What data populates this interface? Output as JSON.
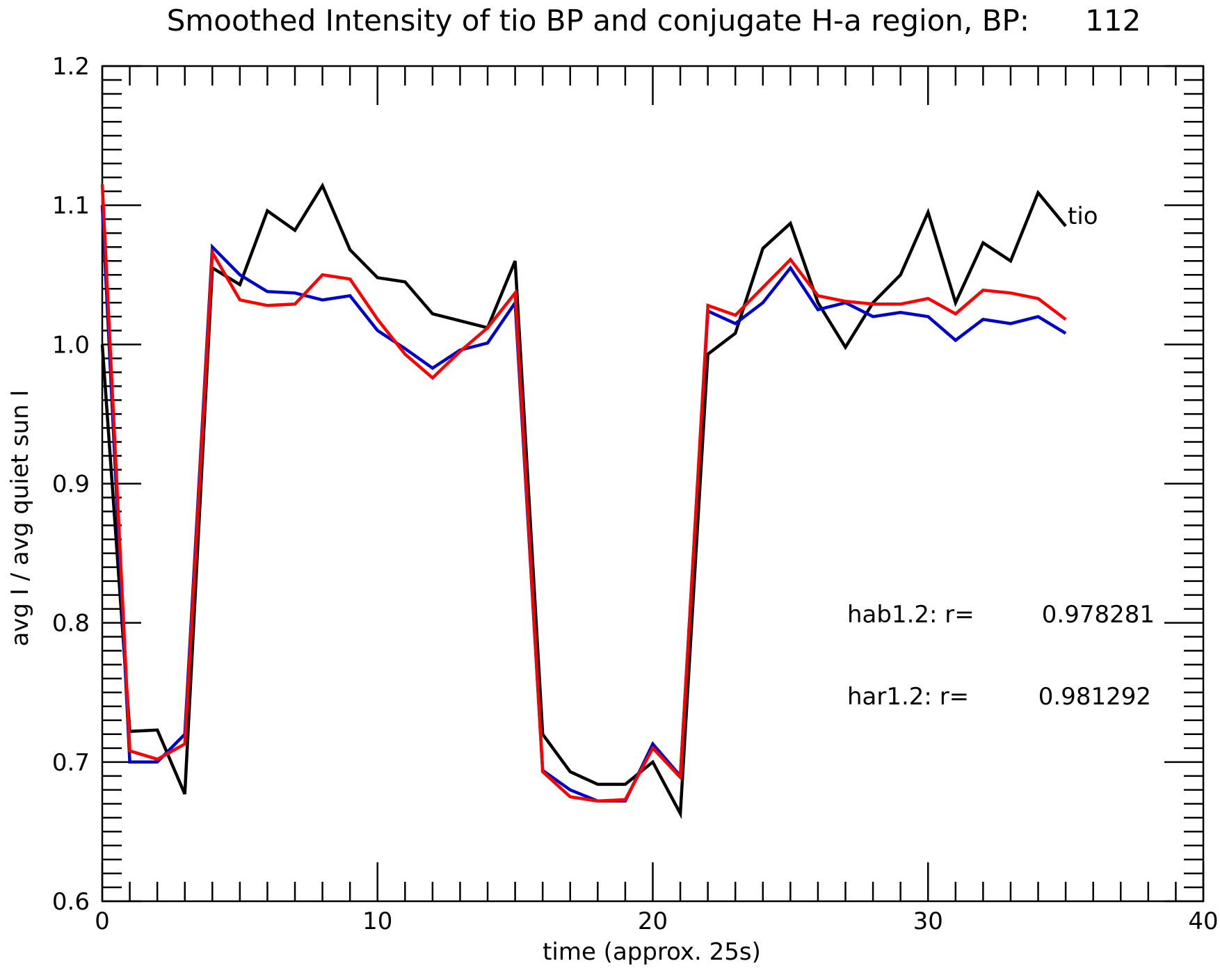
{
  "chart_data": {
    "type": "line",
    "title": "Smoothed Intensity of tio BP and conjugate H-a region, BP:      112",
    "xlabel": "time (approx. 25s)",
    "ylabel": "avg I / avg quiet sun I",
    "xlim": [
      0,
      40
    ],
    "ylim": [
      0.6,
      1.2
    ],
    "x_ticks": [
      0,
      10,
      20,
      30,
      40
    ],
    "x_tick_labels": [
      "0",
      "10",
      "20",
      "30",
      "40"
    ],
    "y_ticks": [
      0.6,
      0.7,
      0.8,
      0.9,
      1.0,
      1.1,
      1.2
    ],
    "y_tick_labels": [
      "0.6",
      "0.7",
      "0.8",
      "0.9",
      "1.0",
      "1.1",
      "1.2"
    ],
    "grid": false,
    "x": [
      0,
      1,
      2,
      3,
      4,
      5,
      6,
      7,
      8,
      9,
      10,
      11,
      12,
      13,
      14,
      15,
      16,
      17,
      18,
      19,
      20,
      21,
      22,
      23,
      24,
      25,
      26,
      27,
      28,
      29,
      30,
      31,
      32,
      33,
      34,
      35
    ],
    "series": [
      {
        "name": "tio",
        "color": "#000000",
        "values": [
          1.0,
          0.722,
          0.723,
          0.677,
          1.055,
          1.043,
          1.096,
          1.082,
          1.114,
          1.068,
          1.048,
          1.045,
          1.022,
          1.017,
          1.012,
          1.06,
          0.72,
          0.693,
          0.684,
          0.684,
          0.7,
          0.663,
          0.993,
          1.008,
          1.069,
          1.087,
          1.03,
          0.998,
          1.03,
          1.05,
          1.095,
          1.03,
          1.073,
          1.06,
          1.109,
          1.085
        ]
      },
      {
        "color": "#0000cc",
        "values": [
          1.1,
          0.7,
          0.7,
          0.72,
          1.07,
          1.05,
          1.038,
          1.037,
          1.032,
          1.035,
          1.01,
          0.997,
          0.983,
          0.996,
          1.001,
          1.03,
          0.694,
          0.68,
          0.672,
          0.672,
          0.713,
          0.69,
          1.024,
          1.015,
          1.03,
          1.055,
          1.025,
          1.03,
          1.02,
          1.023,
          1.02,
          1.003,
          1.018,
          1.015,
          1.02,
          1.008
        ]
      },
      {
        "color": "#ff0000",
        "values": [
          1.115,
          0.708,
          0.702,
          0.713,
          1.066,
          1.032,
          1.028,
          1.029,
          1.05,
          1.047,
          1.018,
          0.993,
          0.976,
          0.995,
          1.012,
          1.037,
          0.693,
          0.675,
          0.672,
          0.673,
          0.71,
          0.689,
          1.028,
          1.021,
          1.041,
          1.061,
          1.035,
          1.031,
          1.029,
          1.029,
          1.033,
          1.022,
          1.039,
          1.037,
          1.033,
          1.018
        ]
      }
    ],
    "series_label": "tio",
    "annotations": [
      {
        "label": "hab1.2: r=",
        "value": "0.978281"
      },
      {
        "label": "har1.2: r=",
        "value": "0.981292"
      }
    ]
  }
}
